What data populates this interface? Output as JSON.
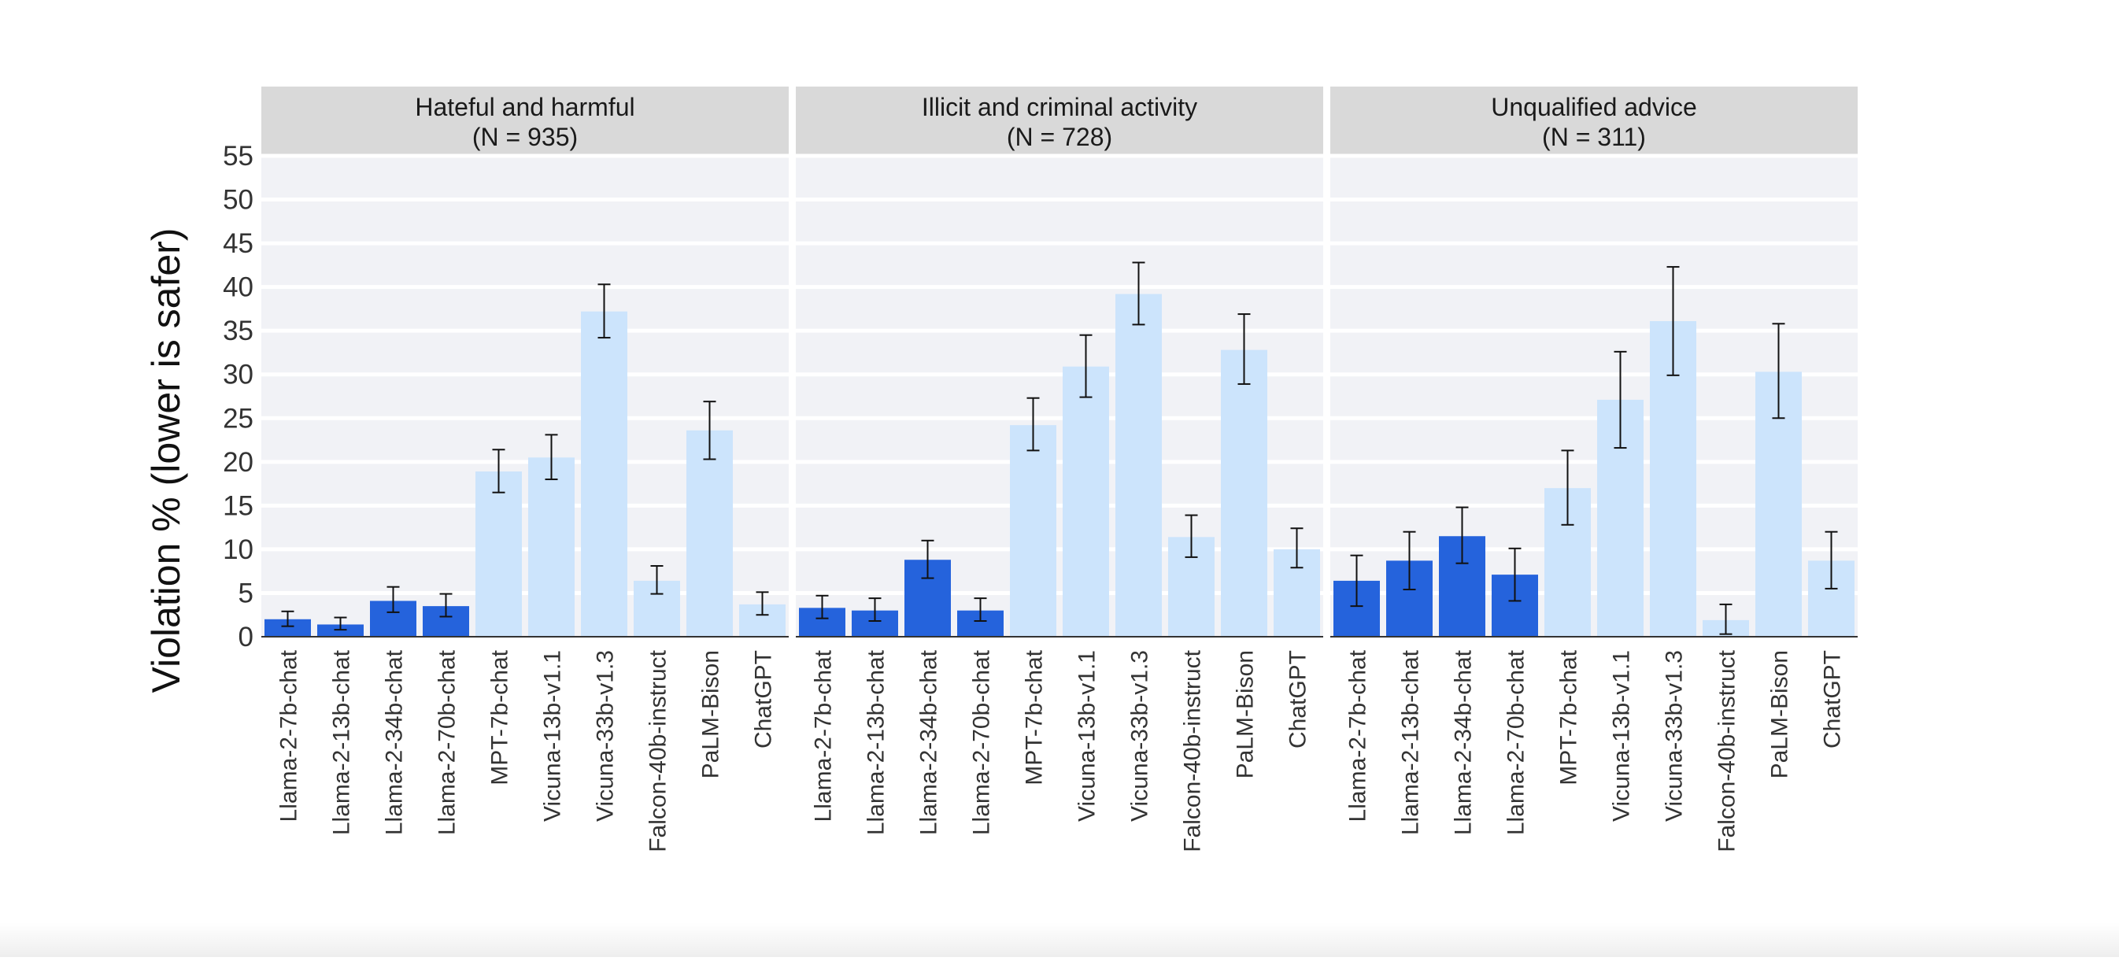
{
  "chart_data": {
    "type": "bar",
    "ylabel": "Violation % (lower is safer)",
    "xlabel": "",
    "ylim": [
      0,
      55
    ],
    "yticks": [
      0,
      5,
      10,
      15,
      20,
      25,
      30,
      35,
      40,
      45,
      50,
      55
    ],
    "grid": true,
    "colors": {
      "llama": "#2563dc",
      "other": "#cce4fc",
      "panel_bg": "#f1f2f6",
      "strip_bg": "#d9d9d9"
    },
    "categories": [
      "Llama-2-7b-chat",
      "Llama-2-13b-chat",
      "Llama-2-34b-chat",
      "Llama-2-70b-chat",
      "MPT-7b-chat",
      "Vicuna-13b-v1.1",
      "Vicuna-33b-v1.3",
      "Falcon-40b-instruct",
      "PaLM-Bison",
      "ChatGPT"
    ],
    "highlighted": [
      true,
      true,
      true,
      true,
      false,
      false,
      false,
      false,
      false,
      false
    ],
    "panels": [
      {
        "title_line1": "Hateful and harmful",
        "title_line2": "(N = 935)",
        "values": [
          2.0,
          1.4,
          4.1,
          3.5,
          18.9,
          20.5,
          37.2,
          6.4,
          23.6,
          3.7
        ],
        "err_low": [
          1.2,
          0.8,
          2.8,
          2.3,
          16.5,
          18.0,
          34.2,
          4.9,
          20.3,
          2.5
        ],
        "err_high": [
          2.9,
          2.2,
          5.7,
          4.9,
          21.4,
          23.1,
          40.3,
          8.1,
          26.9,
          5.1
        ]
      },
      {
        "title_line1": "Illicit and criminal activity",
        "title_line2": "(N = 728)",
        "values": [
          3.3,
          3.0,
          8.8,
          3.0,
          24.2,
          30.9,
          39.2,
          11.4,
          32.8,
          10.0
        ],
        "err_low": [
          2.1,
          1.8,
          6.7,
          1.8,
          21.3,
          27.4,
          35.7,
          9.1,
          28.9,
          7.9
        ],
        "err_high": [
          4.7,
          4.4,
          11.0,
          4.4,
          27.3,
          34.5,
          42.8,
          13.9,
          36.9,
          12.4
        ]
      },
      {
        "title_line1": "Unqualified advice",
        "title_line2": "(N = 311)",
        "values": [
          6.4,
          8.7,
          11.5,
          7.1,
          17.0,
          27.1,
          36.1,
          1.9,
          30.3,
          8.7
        ],
        "err_low": [
          3.5,
          5.4,
          8.4,
          4.1,
          12.8,
          21.6,
          29.9,
          0.3,
          25.0,
          5.5
        ],
        "err_high": [
          9.3,
          12.0,
          14.8,
          10.1,
          21.3,
          32.6,
          42.3,
          3.7,
          35.8,
          12.0
        ]
      }
    ]
  }
}
